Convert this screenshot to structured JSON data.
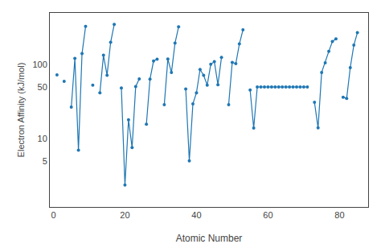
{
  "chart_data": {
    "type": "line",
    "xlabel": "Atomic Number",
    "ylabel": "Electron Affinity (kJ/mol)",
    "x": [
      1,
      2,
      3,
      4,
      5,
      6,
      7,
      8,
      9,
      10,
      11,
      12,
      13,
      14,
      15,
      16,
      17,
      18,
      19,
      20,
      21,
      22,
      23,
      24,
      25,
      26,
      27,
      28,
      29,
      30,
      31,
      32,
      33,
      34,
      35,
      36,
      37,
      38,
      39,
      40,
      41,
      42,
      43,
      44,
      45,
      46,
      47,
      48,
      49,
      50,
      51,
      52,
      53,
      54,
      55,
      56,
      57,
      58,
      59,
      60,
      61,
      62,
      63,
      64,
      65,
      66,
      67,
      68,
      69,
      70,
      71,
      72,
      73,
      74,
      75,
      76,
      77,
      78,
      79,
      80,
      81,
      82,
      83,
      84,
      85,
      86
    ],
    "values": [
      72.8,
      null,
      59.6,
      null,
      26.7,
      121.8,
      7.0,
      141.0,
      328.0,
      null,
      52.8,
      null,
      41.8,
      134.1,
      72.0,
      200.4,
      349.0,
      null,
      48.4,
      2.37,
      18.0,
      7.6,
      50.6,
      64.3,
      null,
      15.7,
      63.7,
      112.0,
      118.4,
      null,
      28.9,
      119.0,
      78.2,
      195.0,
      324.6,
      null,
      46.9,
      5.03,
      29.6,
      41.8,
      86.1,
      71.9,
      53.0,
      101.3,
      109.7,
      53.7,
      125.6,
      null,
      28.9,
      107.3,
      103.2,
      190.2,
      295.2,
      null,
      45.5,
      13.95,
      50.0,
      50.0,
      50.0,
      50.0,
      50.0,
      50.0,
      50.0,
      50.0,
      50.0,
      50.0,
      50.0,
      50.0,
      50.0,
      50.0,
      50.0,
      null,
      31.0,
      14.0,
      78.6,
      106.1,
      151.0,
      205.3,
      222.8,
      null,
      36.4,
      35.1,
      91.2,
      183.2,
      270.1,
      null
    ],
    "xlim": [
      -1,
      88
    ],
    "ylim": [
      1.2,
      500
    ],
    "xticks": [
      0,
      20,
      40,
      60,
      80
    ],
    "yticks": [
      5,
      10,
      50,
      100
    ],
    "log": "y",
    "grid": false,
    "marker": "circle"
  }
}
